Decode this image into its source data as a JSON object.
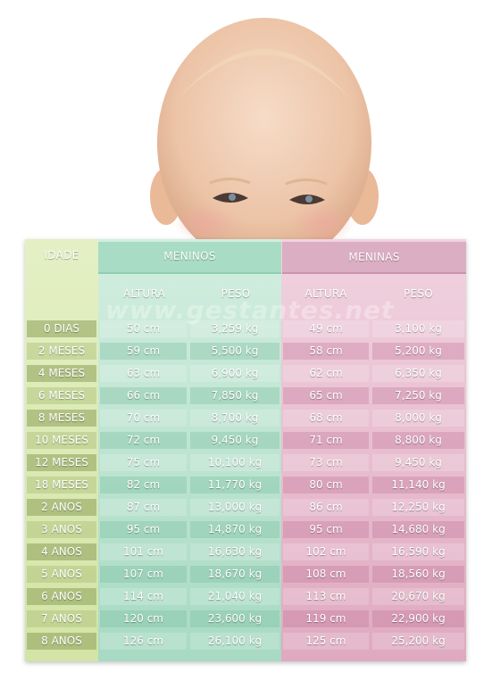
{
  "header": {
    "idade": "IDADE",
    "meninos": "MENINOS",
    "meninas": "MENINAS",
    "altura_boys": "ALTURA",
    "peso_boys": "PESO",
    "altura_girls": "ALTURA",
    "peso_girls": "PESO"
  },
  "watermark": "www.gestantes.net",
  "rows": [
    {
      "idade": "0 DIAS",
      "boy_altura": "50 cm",
      "boy_peso": "3,259 kg",
      "girl_altura": "49 cm",
      "girl_peso": "3,100 kg"
    },
    {
      "idade": "2 MESES",
      "boy_altura": "59 cm",
      "boy_peso": "5,500 kg",
      "girl_altura": "58 cm",
      "girl_peso": "5,200 kg"
    },
    {
      "idade": "4 MESES",
      "boy_altura": "63 cm",
      "boy_peso": "6,900 kg",
      "girl_altura": "62 cm",
      "girl_peso": "6,350 kg"
    },
    {
      "idade": "6 MESES",
      "boy_altura": "66 cm",
      "boy_peso": "7,850 kg",
      "girl_altura": "65 cm",
      "girl_peso": "7,250 kg"
    },
    {
      "idade": "8 MESES",
      "boy_altura": "70 cm",
      "boy_peso": "8,700 kg",
      "girl_altura": "68 cm",
      "girl_peso": "8,000 kg"
    },
    {
      "idade": "10 MESES",
      "boy_altura": "72 cm",
      "boy_peso": "9,450 kg",
      "girl_altura": "71 cm",
      "girl_peso": "8,800 kg"
    },
    {
      "idade": "12 MESES",
      "boy_altura": "75 cm",
      "boy_peso": "10,100 kg",
      "girl_altura": "73 cm",
      "girl_peso": "9,450 kg"
    },
    {
      "idade": "18 MESES",
      "boy_altura": "82 cm",
      "boy_peso": "11,770 kg",
      "girl_altura": "80 cm",
      "girl_peso": "11,140 kg"
    },
    {
      "idade": "2 ANOS",
      "boy_altura": "87 cm",
      "boy_peso": "13,000 kg",
      "girl_altura": "86 cm",
      "girl_peso": "12,250 kg"
    },
    {
      "idade": "3 ANOS",
      "boy_altura": "95 cm",
      "boy_peso": "14,870 kg",
      "girl_altura": "95 cm",
      "girl_peso": "14,680 kg"
    },
    {
      "idade": "4 ANOS",
      "boy_altura": "101 cm",
      "boy_peso": "16,630 kg",
      "girl_altura": "102 cm",
      "girl_peso": "16,590 kg"
    },
    {
      "idade": "5 ANOS",
      "boy_altura": "107 cm",
      "boy_peso": "18,670 kg",
      "girl_altura": "108 cm",
      "girl_peso": "18,560 kg"
    },
    {
      "idade": "6 ANOS",
      "boy_altura": "114 cm",
      "boy_peso": "21,040 kg",
      "girl_altura": "113 cm",
      "girl_peso": "20,670 kg"
    },
    {
      "idade": "7 ANOS",
      "boy_altura": "120 cm",
      "boy_peso": "23,600 kg",
      "girl_altura": "119 cm",
      "girl_peso": "22,900 kg"
    },
    {
      "idade": "8 ANOS",
      "boy_altura": "126 cm",
      "boy_peso": "26,100 kg",
      "girl_altura": "125 cm",
      "girl_peso": "25,200 kg"
    }
  ]
}
